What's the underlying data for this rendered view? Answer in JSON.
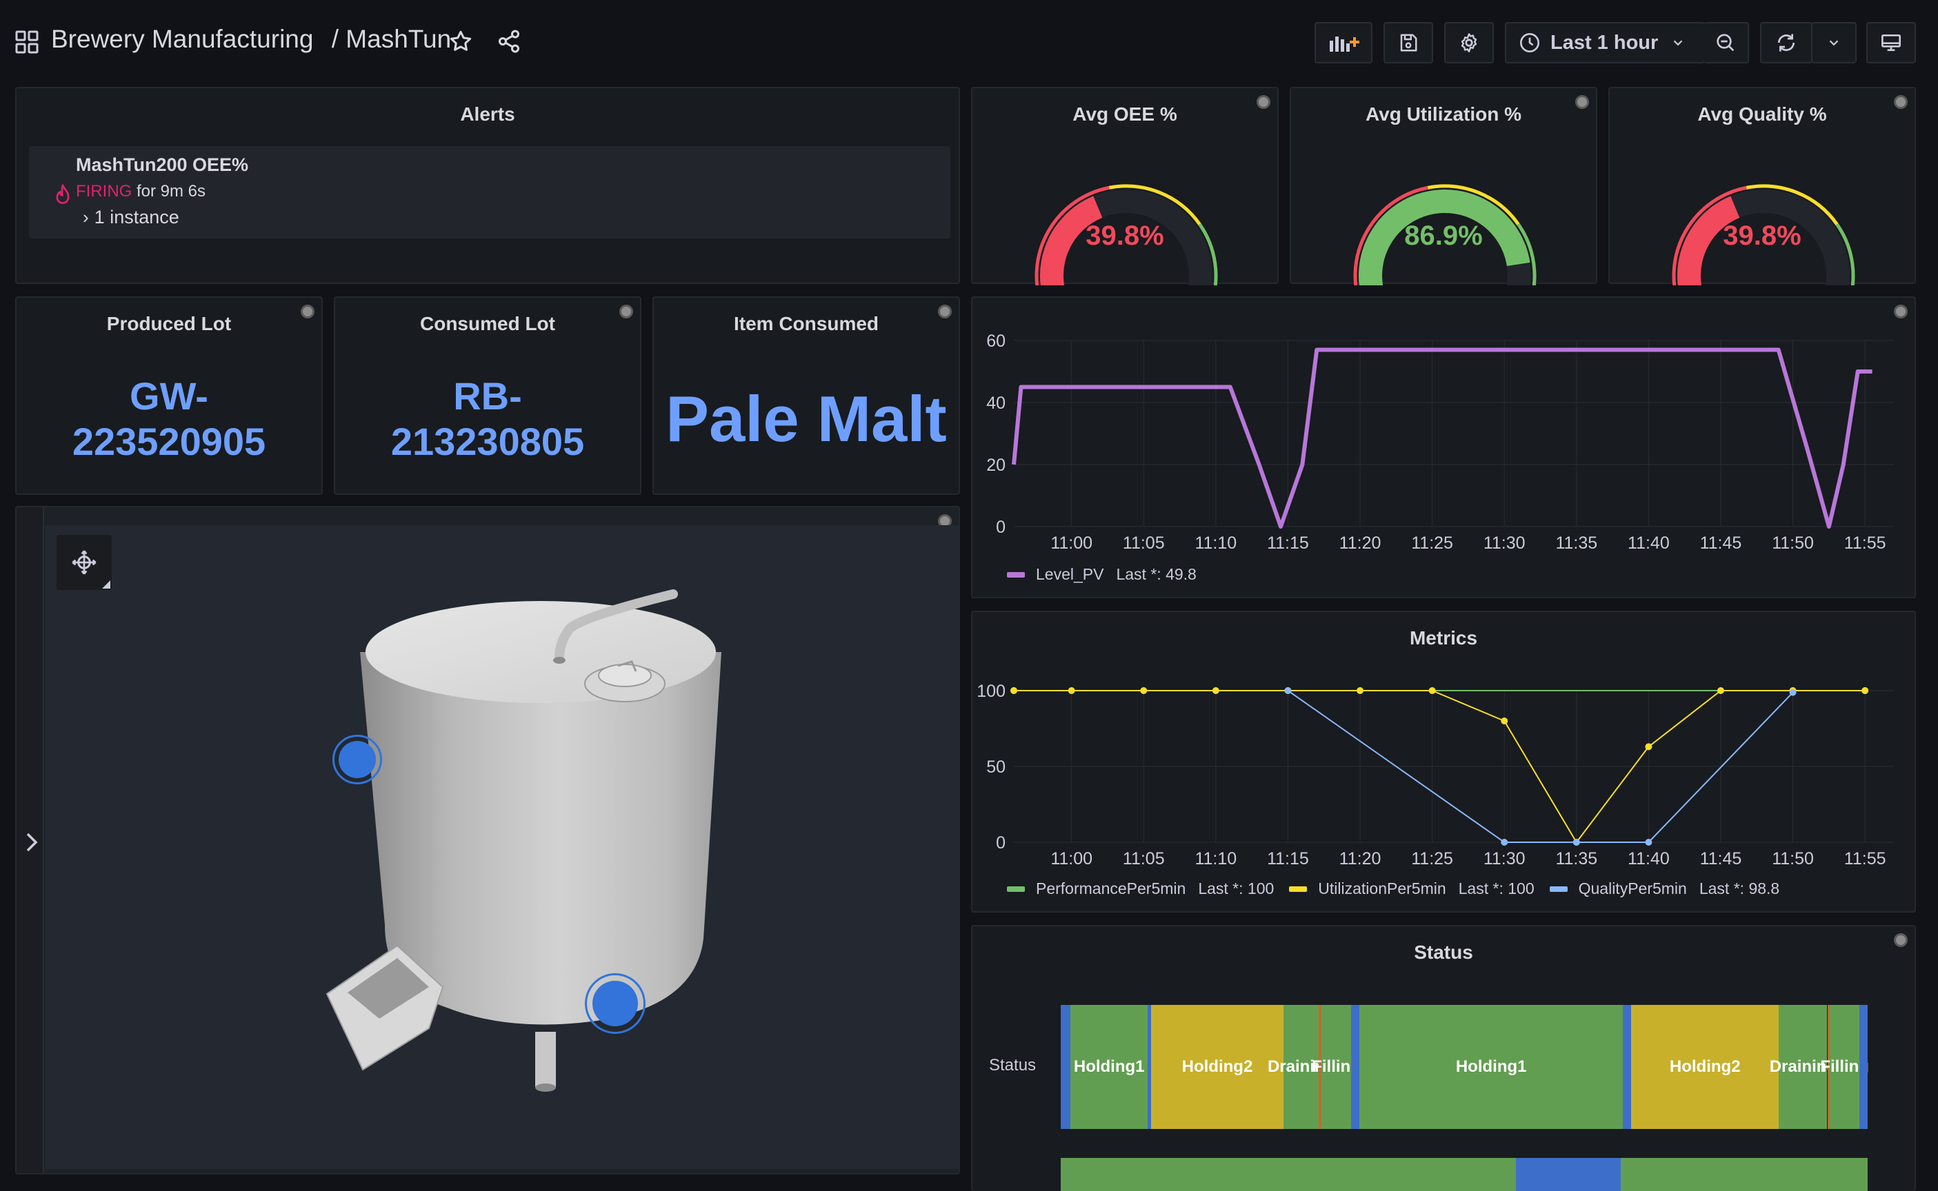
{
  "header": {
    "folder": "Brewery Manufacturing",
    "separator": "/",
    "dashboard": "MashTun",
    "time_range": "Last 1 hour"
  },
  "alerts": {
    "title": "Alerts",
    "rule_name": "MashTun200 OEE%",
    "state": "FIRING",
    "duration": "for 9m 6s",
    "instances": "1 instance",
    "state_color": "#e0226e"
  },
  "gauges": [
    {
      "title": "Avg OEE %",
      "value": 39.8,
      "display": "39.8%",
      "color": "#f2495c"
    },
    {
      "title": "Avg Utilization %",
      "value": 86.9,
      "display": "86.9%",
      "color": "#73bf69"
    },
    {
      "title": "Avg Quality %",
      "value": 39.8,
      "display": "39.8%",
      "color": "#f2495c"
    }
  ],
  "stats": {
    "produced_lot": {
      "title": "Produced Lot",
      "line1": "GW-",
      "line2": "223520905"
    },
    "consumed_lot": {
      "title": "Consumed Lot",
      "line1": "RB-",
      "line2": "213230805"
    },
    "item_consumed": {
      "title": "Item Consumed",
      "value": "Pale Malt"
    }
  },
  "colors": {
    "stat_blue": "#6e9fff",
    "level_purple": "#b877d9",
    "performance_green": "#73bf69",
    "utilization_yellow": "#fade2a",
    "quality_blue": "#8ab8ff",
    "hotspot_blue": "#3274d9"
  },
  "level_chart": {
    "legend_series": "Level_PV",
    "legend_last": "Last *: 49.8"
  },
  "metrics_chart": {
    "title": "Metrics",
    "legend": [
      {
        "name": "PerformancePer5min",
        "last": "Last *: 100"
      },
      {
        "name": "UtilizationPer5min",
        "last": "Last *: 100"
      },
      {
        "name": "QualityPer5min",
        "last": "Last *: 98.8"
      }
    ]
  },
  "status_panel": {
    "title": "Status",
    "row_label": "Status"
  },
  "chart_data": [
    {
      "type": "line",
      "ylim": [
        0,
        60
      ],
      "yticks": [
        0,
        20,
        40,
        60
      ],
      "xlim": [
        "10:56",
        "11:57"
      ],
      "xticks": [
        "11:00",
        "11:05",
        "11:10",
        "11:15",
        "11:20",
        "11:25",
        "11:30",
        "11:35",
        "11:40",
        "11:45",
        "11:50",
        "11:55"
      ],
      "series": [
        {
          "name": "Level_PV",
          "x": [
            "10:56",
            "10:56.5",
            "11:11",
            "11:13",
            "11:14.5",
            "11:16",
            "11:17",
            "11:49",
            "11:51",
            "11:52.5",
            "11:53.5",
            "11:54.5",
            "11:55",
            "11:55.5"
          ],
          "y": [
            20,
            45,
            45,
            20,
            0,
            20,
            57,
            57,
            25,
            0,
            20,
            50,
            50,
            50
          ]
        }
      ]
    },
    {
      "type": "line",
      "title": "Metrics",
      "ylim": [
        0,
        100
      ],
      "yticks": [
        0,
        50,
        100
      ],
      "xlim": [
        "10:56",
        "11:57"
      ],
      "xticks": [
        "11:00",
        "11:05",
        "11:10",
        "11:15",
        "11:20",
        "11:25",
        "11:30",
        "11:35",
        "11:40",
        "11:45",
        "11:50",
        "11:55"
      ],
      "series": [
        {
          "name": "PerformancePer5min",
          "x": [
            "10:56",
            "11:55"
          ],
          "y": [
            100,
            100
          ]
        },
        {
          "name": "UtilizationPer5min",
          "x": [
            "10:56",
            "11:00",
            "11:05",
            "11:10",
            "11:15",
            "11:20",
            "11:25",
            "11:30",
            "11:35",
            "11:40",
            "11:45",
            "11:50",
            "11:55"
          ],
          "y": [
            100,
            100,
            100,
            100,
            100,
            100,
            100,
            80,
            0,
            63,
            100,
            100,
            100
          ]
        },
        {
          "name": "QualityPer5min",
          "x": [
            "11:15",
            "11:30",
            "11:35",
            "11:40",
            "11:50"
          ],
          "y": [
            100,
            0,
            0,
            0,
            98.8
          ]
        }
      ]
    },
    {
      "type": "state-timeline",
      "title": "Status",
      "rows": [
        "Status"
      ],
      "segments": [
        {
          "label": "",
          "state": "blue",
          "start": 0.0,
          "end": 0.012
        },
        {
          "label": "Holding1",
          "state": "green",
          "start": 0.012,
          "end": 0.108
        },
        {
          "label": "",
          "state": "blue",
          "start": 0.108,
          "end": 0.112
        },
        {
          "label": "Holding2",
          "state": "yellow",
          "start": 0.112,
          "end": 0.276
        },
        {
          "label": "Draining",
          "state": "green",
          "start": 0.276,
          "end": 0.32
        },
        {
          "label": "",
          "state": "orange",
          "start": 0.32,
          "end": 0.323
        },
        {
          "label": "Filling",
          "state": "green",
          "start": 0.323,
          "end": 0.36
        },
        {
          "label": "",
          "state": "blue",
          "start": 0.36,
          "end": 0.37
        },
        {
          "label": "Holding1",
          "state": "green",
          "start": 0.37,
          "end": 0.697
        },
        {
          "label": "",
          "state": "blue",
          "start": 0.697,
          "end": 0.707
        },
        {
          "label": "Holding2",
          "state": "yellow",
          "start": 0.707,
          "end": 0.89
        },
        {
          "label": "Draining",
          "state": "green",
          "start": 0.89,
          "end": 0.95
        },
        {
          "label": "",
          "state": "orange",
          "start": 0.95,
          "end": 0.953
        },
        {
          "label": "Filling",
          "state": "green",
          "start": 0.953,
          "end": 0.99
        },
        {
          "label": "",
          "state": "blue",
          "start": 0.99,
          "end": 1.0
        }
      ],
      "second_row": [
        {
          "state": "green",
          "start": 0.0,
          "end": 0.564
        },
        {
          "state": "blue",
          "start": 0.564,
          "end": 0.694
        },
        {
          "state": "green",
          "start": 0.694,
          "end": 1.0
        }
      ]
    }
  ]
}
